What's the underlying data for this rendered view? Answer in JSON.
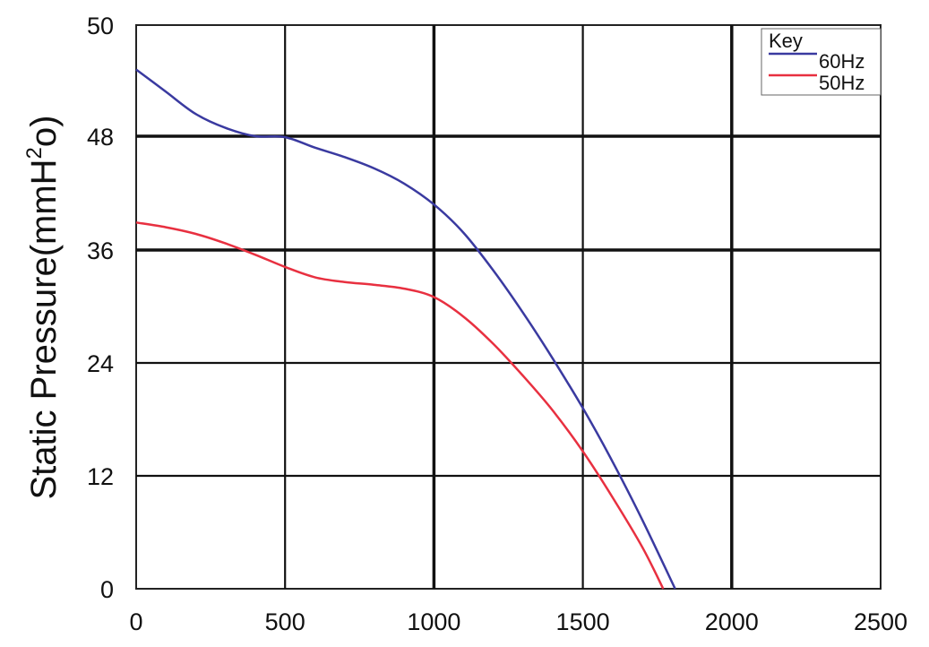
{
  "chart_data": {
    "type": "line",
    "title": "",
    "xlabel": "",
    "ylabel": "Static Pressure(mmH²o)",
    "ylabel_parts": {
      "main": "Static Pressure(mmH",
      "sup": "2",
      "tail": "o)"
    },
    "x_ticks": [
      "0",
      "500",
      "1000",
      "1500",
      "2000",
      "2500"
    ],
    "y_ticks": [
      "0",
      "12",
      "24",
      "36",
      "48",
      "50"
    ],
    "xlim": [
      0,
      2500
    ],
    "grid": true,
    "legend": {
      "title": "Key",
      "placement": "top-right"
    },
    "series": [
      {
        "name": "60Hz",
        "color": "#3a3aa0",
        "x": [
          0,
          100,
          200,
          300,
          400,
          500,
          600,
          700,
          800,
          900,
          1000,
          1100,
          1200,
          1300,
          1400,
          1500,
          1600,
          1700,
          1810
        ],
        "y": [
          49.2,
          48.8,
          48.4,
          48.15,
          48.0,
          47.9,
          46.8,
          45.8,
          44.6,
          43.0,
          40.8,
          37.8,
          33.8,
          29.3,
          24.4,
          19.2,
          13.5,
          7.3,
          0
        ]
      },
      {
        "name": "50Hz",
        "color": "#e83040",
        "x": [
          0,
          100,
          200,
          300,
          400,
          500,
          600,
          700,
          800,
          900,
          1000,
          1100,
          1200,
          1300,
          1400,
          1500,
          1600,
          1700,
          1770
        ],
        "y": [
          38.9,
          38.4,
          37.7,
          36.7,
          35.5,
          34.2,
          33.1,
          32.6,
          32.3,
          31.9,
          31.0,
          28.9,
          26.0,
          22.6,
          18.9,
          14.6,
          9.7,
          4.4,
          0
        ]
      }
    ]
  }
}
